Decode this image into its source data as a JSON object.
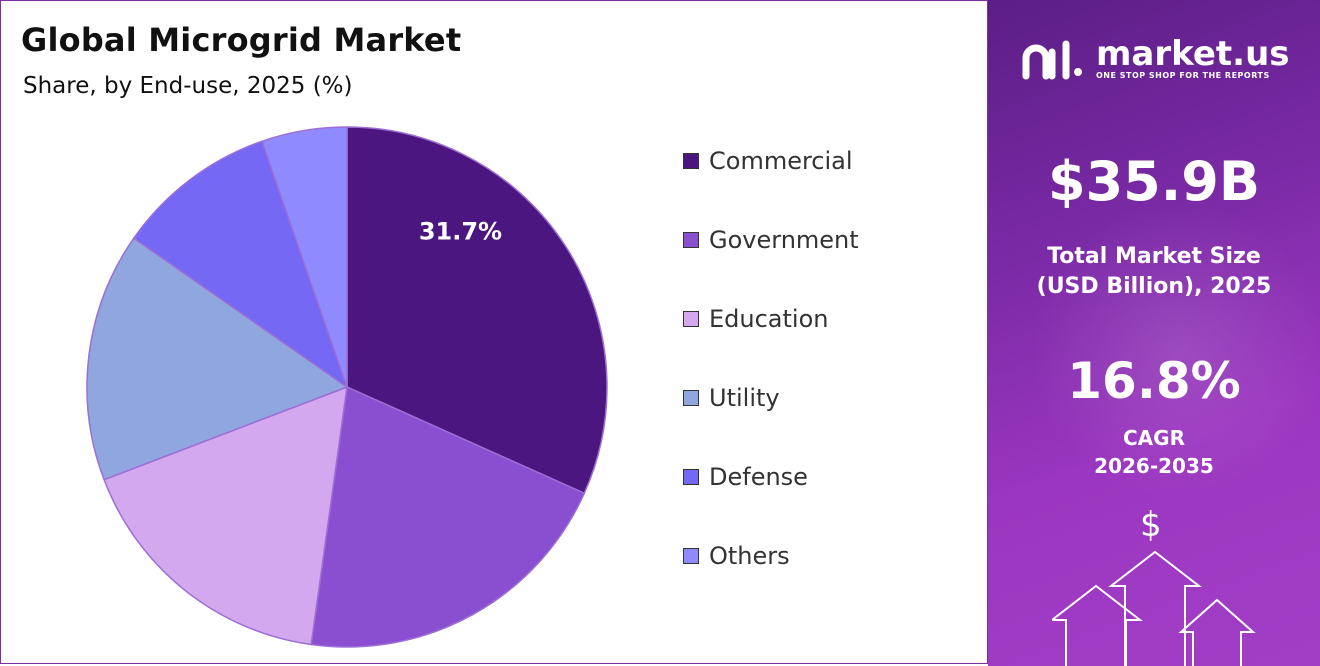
{
  "title": "Global Microgrid Market",
  "subtitle": "Share, by End-use, 2025 (%)",
  "chart_data": {
    "type": "pie",
    "title": "Global Microgrid Market",
    "subtitle": "Share, by End-use, 2025 (%)",
    "categories": [
      "Commercial",
      "Government",
      "Education",
      "Utility",
      "Defense",
      "Others"
    ],
    "values": [
      31.7,
      20.5,
      17.0,
      15.5,
      10.0,
      5.3
    ],
    "colors": [
      "#4b1680",
      "#8a4fd0",
      "#d3a8ef",
      "#8fa7de",
      "#7468f5",
      "#8f8bff"
    ],
    "data_labels": [
      "31.7%"
    ],
    "legend_position": "right"
  },
  "side_panel": {
    "brand_name": "market.us",
    "brand_tagline": "ONE STOP SHOP FOR THE REPORTS",
    "market_size_value": "$35.9B",
    "market_size_label_line1": "Total Market Size",
    "market_size_label_line2": "(USD Billion), 2025",
    "cagr_value": "16.8%",
    "cagr_label_line1": "CAGR",
    "cagr_label_line2": "2026-2035",
    "dollar_symbol": "$",
    "icon_logo": "market-us-logo-icon",
    "icon_arrows": "growth-arrows-icon"
  }
}
